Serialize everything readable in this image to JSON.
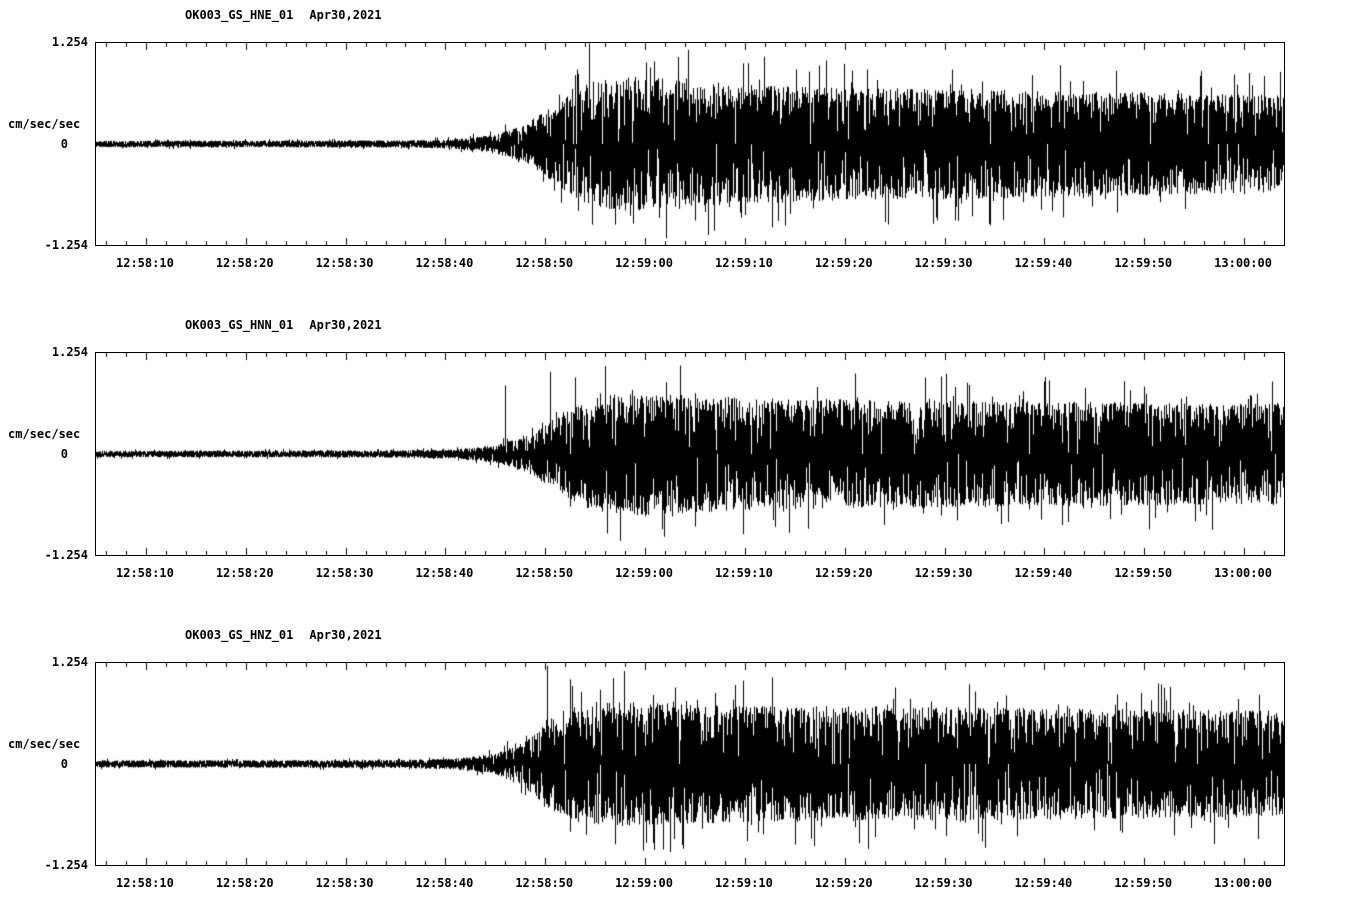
{
  "figure": {
    "background": "#ffffff",
    "text_color": "#000000"
  },
  "chart_data": [
    {
      "type": "line",
      "subtype": "seismogram",
      "station": "OK003_GS_HNE_01",
      "date": "Apr30,2021",
      "ylabel": "cm/sec/sec",
      "yticks": [
        "1.254",
        "0",
        "-1.254"
      ],
      "ylim": [
        -1.254,
        1.254
      ],
      "x_tick_labels": [
        "12:58:10",
        "12:58:20",
        "12:58:30",
        "12:58:40",
        "12:58:50",
        "12:59:00",
        "12:59:10",
        "12:59:20",
        "12:59:30",
        "12:59:40",
        "12:59:50",
        "13:00:00"
      ],
      "x_start_label": "12:58:05",
      "x_end_label": "13:00:04",
      "duration_sec": 119,
      "first_tick_offset_sec": 5,
      "x_axis_start_sec": 5,
      "x_major_interval_sec": 10,
      "x_minor_interval_sec": 2,
      "line_color": "#000000",
      "grid": false,
      "legend": false,
      "envelope_t_sec": [
        0,
        30,
        36,
        40,
        43,
        46,
        49,
        53,
        58,
        65,
        75,
        90,
        105,
        119
      ],
      "envelope_amp": [
        0.04,
        0.045,
        0.06,
        0.12,
        0.25,
        0.5,
        0.75,
        0.85,
        0.8,
        0.74,
        0.7,
        0.68,
        0.64,
        0.6
      ],
      "spikes": [
        [
          49.4,
          1.25
        ],
        [
          52.0,
          -1.0
        ],
        [
          55.5,
          0.95
        ],
        [
          60.0,
          -0.95
        ],
        [
          64.8,
          1.0
        ],
        [
          71.4,
          0.9
        ]
      ],
      "noise_seed": 11
    },
    {
      "type": "line",
      "subtype": "seismogram",
      "station": "OK003_GS_HNN_01",
      "date": "Apr30,2021",
      "ylabel": "cm/sec/sec",
      "yticks": [
        "1.254",
        "0",
        "-1.254"
      ],
      "ylim": [
        -1.254,
        1.254
      ],
      "x_tick_labels": [
        "12:58:10",
        "12:58:20",
        "12:58:30",
        "12:58:40",
        "12:58:50",
        "12:59:00",
        "12:59:10",
        "12:59:20",
        "12:59:30",
        "12:59:40",
        "12:59:50",
        "13:00:00"
      ],
      "x_start_label": "12:58:05",
      "x_end_label": "13:00:04",
      "duration_sec": 119,
      "first_tick_offset_sec": 5,
      "x_axis_start_sec": 5,
      "x_major_interval_sec": 10,
      "x_minor_interval_sec": 2,
      "line_color": "#000000",
      "grid": false,
      "legend": false,
      "envelope_t_sec": [
        0,
        30,
        36,
        40,
        43,
        46,
        49,
        53,
        58,
        65,
        75,
        90,
        105,
        119
      ],
      "envelope_amp": [
        0.04,
        0.045,
        0.06,
        0.11,
        0.22,
        0.45,
        0.68,
        0.78,
        0.74,
        0.7,
        0.68,
        0.66,
        0.64,
        0.62
      ],
      "spikes": [
        [
          41.0,
          0.85
        ],
        [
          45.5,
          1.02
        ],
        [
          48.0,
          0.95
        ],
        [
          60.0,
          -0.9
        ],
        [
          76.0,
          1.0
        ],
        [
          83.0,
          0.95
        ],
        [
          95.0,
          0.9
        ]
      ],
      "noise_seed": 22
    },
    {
      "type": "line",
      "subtype": "seismogram",
      "station": "OK003_GS_HNZ_01",
      "date": "Apr30,2021",
      "ylabel": "cm/sec/sec",
      "yticks": [
        "1.254",
        "0",
        "-1.254"
      ],
      "ylim": [
        -1.254,
        1.254
      ],
      "x_tick_labels": [
        "12:58:10",
        "12:58:20",
        "12:58:30",
        "12:58:40",
        "12:58:50",
        "12:59:00",
        "12:59:10",
        "12:59:20",
        "12:59:30",
        "12:59:40",
        "12:59:50",
        "13:00:00"
      ],
      "x_start_label": "12:58:05",
      "x_end_label": "13:00:04",
      "duration_sec": 119,
      "first_tick_offset_sec": 5,
      "x_axis_start_sec": 5,
      "x_major_interval_sec": 10,
      "x_minor_interval_sec": 2,
      "line_color": "#000000",
      "grid": false,
      "legend": false,
      "envelope_t_sec": [
        0,
        30,
        36,
        40,
        43,
        45,
        48,
        52,
        58,
        65,
        75,
        90,
        105,
        119
      ],
      "envelope_amp": [
        0.045,
        0.05,
        0.07,
        0.13,
        0.3,
        0.55,
        0.72,
        0.78,
        0.75,
        0.72,
        0.72,
        0.7,
        0.68,
        0.66
      ],
      "spikes": [
        [
          45.2,
          1.22
        ],
        [
          47.5,
          1.05
        ],
        [
          58.0,
          0.95
        ],
        [
          64.0,
          0.98
        ],
        [
          70.0,
          -1.0
        ],
        [
          80.0,
          0.95
        ],
        [
          88.0,
          0.9
        ]
      ],
      "noise_seed": 33
    }
  ]
}
